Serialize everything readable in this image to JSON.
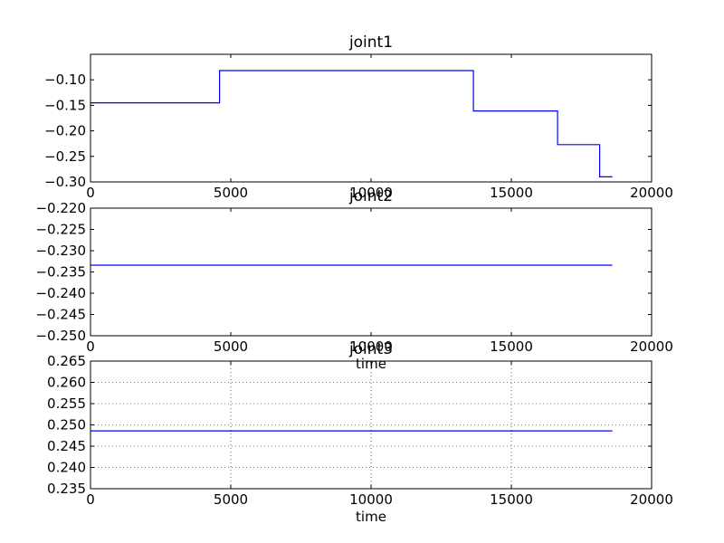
{
  "chart_data": [
    {
      "type": "line",
      "title": "joint1",
      "xlabel": "",
      "ylabel": "",
      "xlim": [
        0,
        20000
      ],
      "ylim": [
        -0.3,
        -0.05
      ],
      "grid": false,
      "xticks": [
        0,
        5000,
        10000,
        15000,
        20000
      ],
      "xtick_labels": [
        "0",
        "5000",
        "10000",
        "15000",
        "20000"
      ],
      "yticks": [
        -0.3,
        -0.25,
        -0.2,
        -0.15,
        -0.1
      ],
      "ytick_labels": [
        "−0.30",
        "−0.25",
        "−0.20",
        "−0.15",
        "−0.10"
      ],
      "line_color": "#0000ff",
      "series": [
        {
          "name": "joint1",
          "step": true,
          "x": [
            0,
            4600,
            13650,
            16650,
            18150,
            18600
          ],
          "y": [
            -0.145,
            -0.082,
            -0.161,
            -0.227,
            -0.29,
            -0.29
          ]
        }
      ]
    },
    {
      "type": "line",
      "title": "joint2",
      "xlabel": "time",
      "ylabel": "",
      "xlim": [
        0,
        20000
      ],
      "ylim": [
        -0.25,
        -0.22
      ],
      "grid": false,
      "xticks": [
        0,
        5000,
        10000,
        15000,
        20000
      ],
      "xtick_labels": [
        "0",
        "5000",
        "10000",
        "15000",
        "20000"
      ],
      "yticks": [
        -0.25,
        -0.245,
        -0.24,
        -0.235,
        -0.23,
        -0.225,
        -0.22
      ],
      "ytick_labels": [
        "−0.250",
        "−0.245",
        "−0.240",
        "−0.235",
        "−0.230",
        "−0.225",
        "−0.220"
      ],
      "line_color": "#0000ff",
      "series": [
        {
          "name": "joint2",
          "step": false,
          "x": [
            0,
            18600
          ],
          "y": [
            -0.2334,
            -0.2334
          ]
        }
      ]
    },
    {
      "type": "line",
      "title": "joint3",
      "xlabel": "time",
      "ylabel": "",
      "xlim": [
        0,
        20000
      ],
      "ylim": [
        0.235,
        0.265
      ],
      "grid": true,
      "xticks": [
        0,
        5000,
        10000,
        15000,
        20000
      ],
      "xtick_labels": [
        "0",
        "5000",
        "10000",
        "15000",
        "20000"
      ],
      "yticks": [
        0.235,
        0.24,
        0.245,
        0.25,
        0.255,
        0.26,
        0.265
      ],
      "ytick_labels": [
        "0.235",
        "0.240",
        "0.245",
        "0.250",
        "0.255",
        "0.260",
        "0.265"
      ],
      "line_color": "#0000ff",
      "series": [
        {
          "name": "joint3",
          "step": false,
          "x": [
            0,
            18600
          ],
          "y": [
            0.2486,
            0.2486
          ]
        }
      ]
    }
  ]
}
